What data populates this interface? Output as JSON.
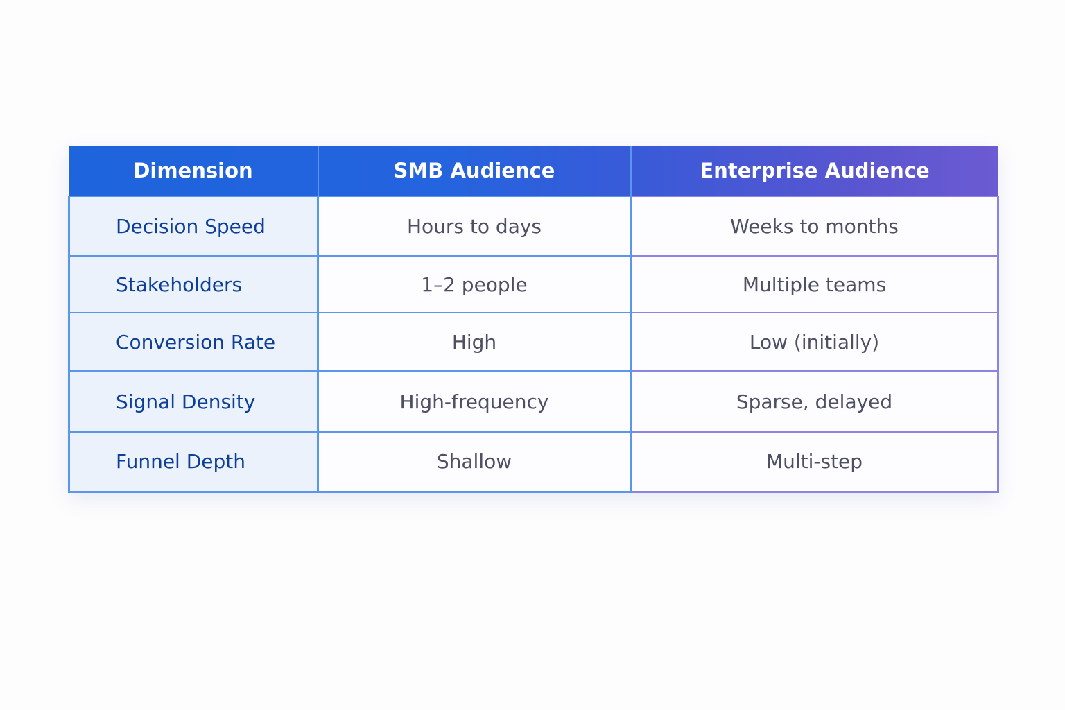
{
  "table": {
    "headers": [
      "Dimension",
      "SMB Audience",
      "Enterprise Audience"
    ],
    "rows": [
      {
        "dimension": "Decision Speed",
        "smb": "Hours to days",
        "enterprise": "Weeks to months"
      },
      {
        "dimension": "Stakeholders",
        "smb": "1–2 people",
        "enterprise": "Multiple teams"
      },
      {
        "dimension": "Conversion Rate",
        "smb": "High",
        "enterprise": "Low (initially)"
      },
      {
        "dimension": "Signal Density",
        "smb": "High-frequency",
        "enterprise": "Sparse, delayed"
      },
      {
        "dimension": "Funnel Depth",
        "smb": "Shallow",
        "enterprise": "Multi-step"
      }
    ]
  },
  "colors": {
    "header_gradient_start": "#1e64dc",
    "header_gradient_end": "#6c5bd2",
    "dimension_text": "#0d3f9a",
    "dimension_bg": "#ecf2fc",
    "cell_text": "#4f4f64",
    "grid_blue": "#5a96ea",
    "grid_purple": "#8b84e0"
  }
}
